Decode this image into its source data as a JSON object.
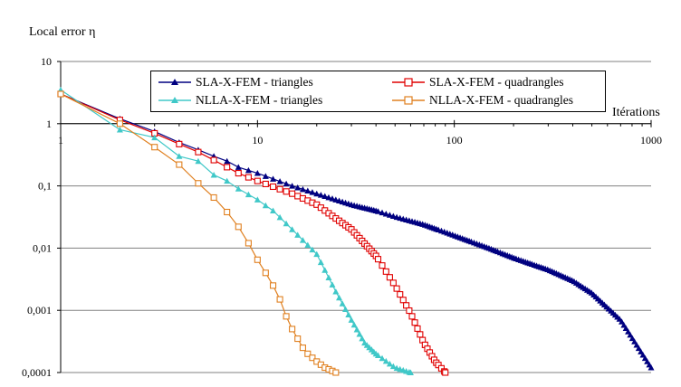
{
  "chart_data": {
    "type": "line",
    "title": "",
    "xlabel": "Itérations",
    "ylabel": "Local error η",
    "xscale": "log",
    "yscale": "log",
    "xlim": [
      1,
      1000
    ],
    "ylim": [
      0.0001,
      10
    ],
    "x_tick_labels": [
      "1",
      "10",
      "100",
      "1000"
    ],
    "y_tick_labels": [
      "10",
      "1",
      "0,1",
      "0,01",
      "0,001",
      "0,0001"
    ],
    "grid": "horizontal",
    "legend_position": "top",
    "series": [
      {
        "name": "SLA-X-FEM - triangles",
        "color": "#000080",
        "marker": "triangle-filled",
        "x": [
          1,
          2,
          3,
          4,
          5,
          6,
          7,
          8,
          10,
          15,
          20,
          30,
          40,
          50,
          70,
          100,
          150,
          200,
          300,
          400,
          500,
          700,
          1000
        ],
        "y": [
          3.0,
          1.2,
          0.75,
          0.5,
          0.38,
          0.3,
          0.25,
          0.2,
          0.16,
          0.1,
          0.075,
          0.05,
          0.04,
          0.032,
          0.024,
          0.016,
          0.01,
          0.007,
          0.0045,
          0.003,
          0.0019,
          0.0007,
          0.00012
        ]
      },
      {
        "name": "SLA-X-FEM - quadrangles",
        "color": "#e00000",
        "marker": "square-open",
        "x": [
          1,
          2,
          3,
          4,
          5,
          6,
          7,
          8,
          10,
          15,
          20,
          25,
          30,
          40,
          50,
          60,
          70,
          80,
          90
        ],
        "y": [
          3.0,
          1.15,
          0.7,
          0.47,
          0.35,
          0.26,
          0.2,
          0.16,
          0.12,
          0.075,
          0.05,
          0.03,
          0.02,
          0.0075,
          0.0025,
          0.0009,
          0.0003,
          0.00015,
          0.0001
        ]
      },
      {
        "name": "NLLA-X-FEM - triangles",
        "color": "#40c8c8",
        "marker": "triangle-filled",
        "x": [
          1,
          2,
          3,
          4,
          5,
          6,
          7,
          8,
          10,
          12,
          15,
          20,
          25,
          30,
          35,
          40,
          50,
          60
        ],
        "y": [
          3.5,
          0.8,
          0.6,
          0.3,
          0.25,
          0.15,
          0.12,
          0.09,
          0.06,
          0.04,
          0.02,
          0.008,
          0.002,
          0.0007,
          0.0003,
          0.0002,
          0.00012,
          0.0001
        ]
      },
      {
        "name": "NLLA-X-FEM - quadrangles",
        "color": "#e08020",
        "marker": "square-open",
        "x": [
          1,
          2,
          3,
          4,
          5,
          6,
          7,
          8,
          9,
          10,
          11,
          12,
          13,
          14,
          15,
          16,
          17,
          18,
          20,
          22,
          25
        ],
        "y": [
          3.0,
          1.0,
          0.42,
          0.22,
          0.11,
          0.065,
          0.038,
          0.022,
          0.012,
          0.0065,
          0.004,
          0.0025,
          0.0015,
          0.0008,
          0.0005,
          0.00035,
          0.00025,
          0.0002,
          0.00015,
          0.00012,
          0.0001
        ]
      }
    ]
  }
}
